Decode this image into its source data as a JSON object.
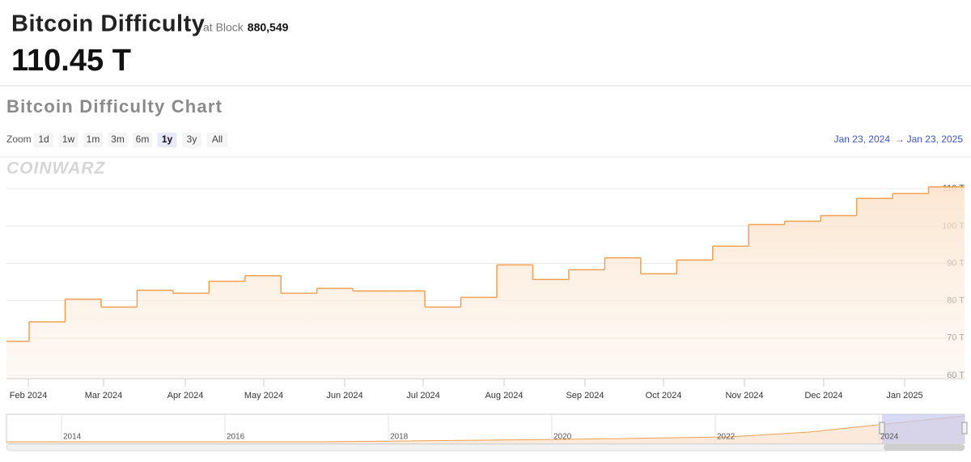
{
  "header": {
    "title": "Bitcoin Difficulty",
    "block_prefix": "at Block",
    "block": "880,549",
    "value": "110.45 T"
  },
  "chart_heading": "Bitcoin Difficulty Chart",
  "zoom": {
    "label": "Zoom",
    "buttons": [
      "1d",
      "1w",
      "1m",
      "3m",
      "6m",
      "1y",
      "3y",
      "All"
    ],
    "active": "1y"
  },
  "range": {
    "from": "Jan 23, 2024",
    "arrow": "→",
    "to": "Jan 23, 2025"
  },
  "watermark": "COINWARZ",
  "navigator": {
    "labels": [
      "2014",
      "2016",
      "2018",
      "2020",
      "2022",
      "2024"
    ]
  },
  "chart_data": {
    "type": "step",
    "x_labels": [
      "Feb 2024",
      "Mar 2024",
      "Apr 2024",
      "May 2024",
      "Jun 2024",
      "Jul 2024",
      "Aug 2024",
      "Sep 2024",
      "Oct 2024",
      "Nov 2024",
      "Dec 2024",
      "Jan 2025"
    ],
    "categories": [
      null,
      null,
      null,
      null,
      null,
      null,
      null,
      null,
      null,
      null,
      null,
      null,
      null,
      null,
      null,
      null,
      null,
      null,
      null,
      null,
      null,
      null,
      null,
      null,
      null,
      null,
      null
    ],
    "values": [
      69.1,
      74.3,
      80.4,
      78.3,
      82.8,
      82.0,
      85.2,
      86.7,
      82.0,
      83.3,
      82.6,
      82.6,
      78.3,
      80.9,
      89.6,
      85.7,
      88.3,
      91.5,
      87.2,
      90.9,
      94.6,
      100.4,
      101.3,
      102.8,
      107.4,
      108.7,
      110.5
    ],
    "color": "#f0a050",
    "ylim": [
      59.1,
      118.3
    ],
    "yticks": [
      {
        "value": 60,
        "label": "60 T"
      },
      {
        "value": 70,
        "label": "70 T"
      },
      {
        "value": 80,
        "label": "80 T"
      },
      {
        "value": 90,
        "label": "90 T"
      },
      {
        "value": 100,
        "label": "100 T"
      },
      {
        "value": 110,
        "label": "110 T"
      }
    ],
    "grid": true
  }
}
